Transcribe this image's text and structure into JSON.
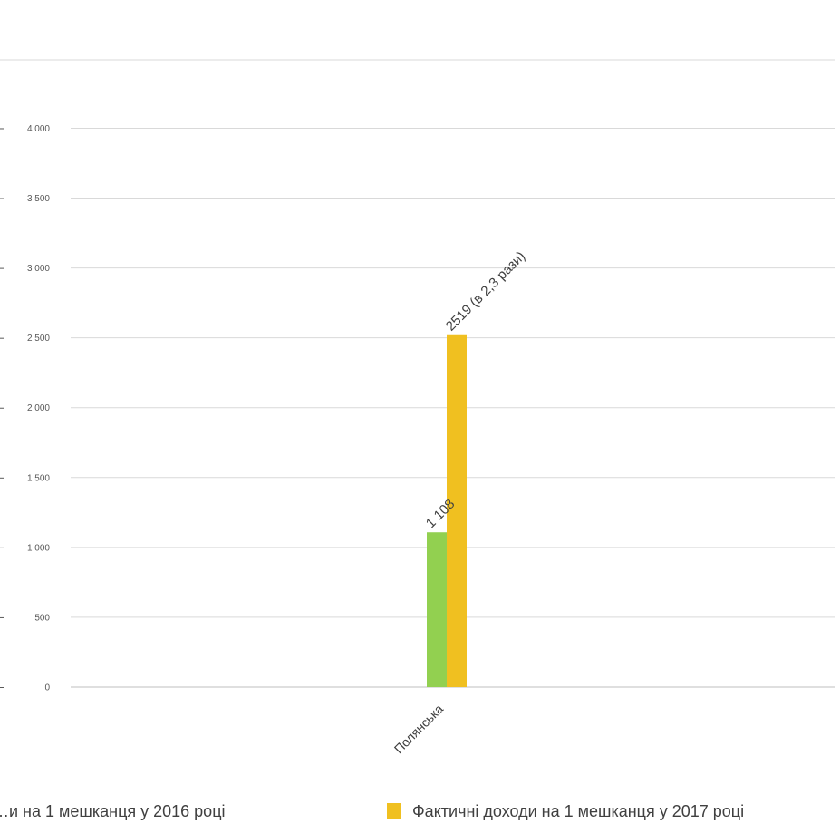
{
  "chart_data": {
    "type": "bar",
    "categories": [
      "Полянська"
    ],
    "series": [
      {
        "name": "…и на 1 мешканця у 2016 році",
        "values": [
          1108
        ],
        "color": "#92d050",
        "data_label": "1 108"
      },
      {
        "name": "Фактичні доходи на 1 мешканця у 2017 році",
        "values": [
          2519
        ],
        "color": "#f0c020",
        "data_label": "2519 (в 2,3 рази)"
      }
    ],
    "ylim": [
      0,
      4500
    ],
    "yticks": [
      {
        "value": 0,
        "label": "0"
      },
      {
        "value": 500,
        "label": "500"
      },
      {
        "value": 1000,
        "label": "1 000"
      },
      {
        "value": 1500,
        "label": "1 500"
      },
      {
        "value": 2000,
        "label": "2 000"
      },
      {
        "value": 2500,
        "label": "2 500"
      },
      {
        "value": 3000,
        "label": "3 000"
      },
      {
        "value": 3500,
        "label": "3 500"
      },
      {
        "value": 4000,
        "label": "4 000"
      }
    ],
    "grid": true,
    "legend_position": "bottom",
    "gridline_color": "#d9d9d9"
  }
}
